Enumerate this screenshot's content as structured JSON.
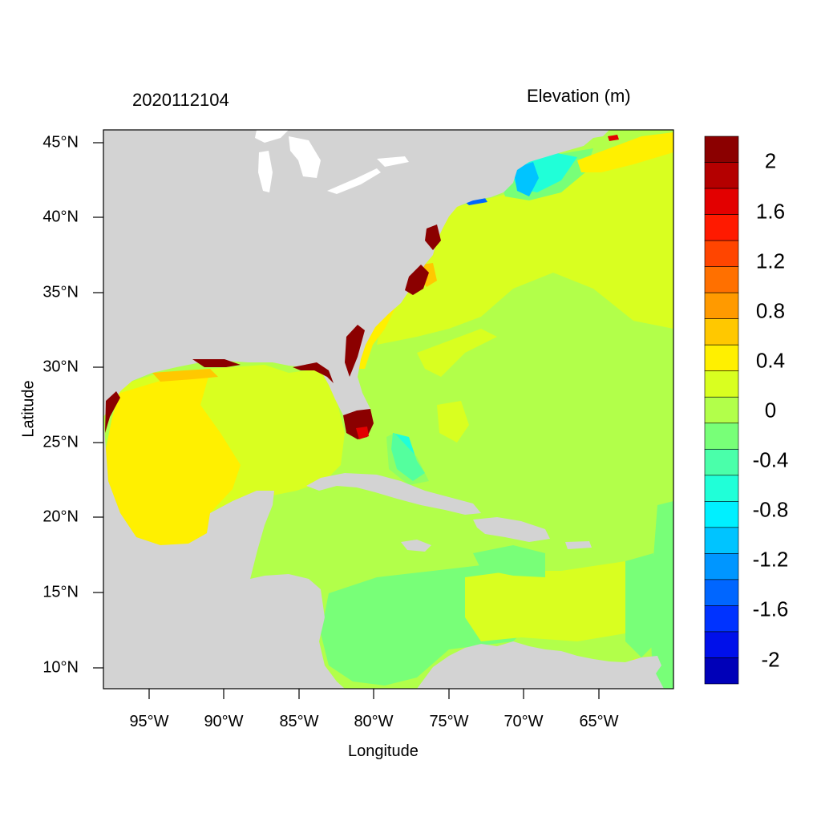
{
  "figure": {
    "title_left": "2020112104",
    "title_right": "Elevation (m)",
    "xlabel": "Longitude",
    "ylabel": "Latitude"
  },
  "axes": {
    "x_ticks": [
      "95°W",
      "90°W",
      "85°W",
      "80°W",
      "75°W",
      "70°W",
      "65°W"
    ],
    "y_ticks": [
      "45°N",
      "40°N",
      "35°N",
      "30°N",
      "25°N",
      "20°N",
      "15°N",
      "10°N"
    ],
    "lon_range": [
      -98,
      -60
    ],
    "lat_range": [
      8.5,
      46
    ]
  },
  "colorbar": {
    "tick_labels": [
      "2",
      "1.6",
      "1.2",
      "0.8",
      "0.4",
      "0",
      "-0.4",
      "-0.8",
      "-1.2",
      "-1.6",
      "-2"
    ],
    "colors_top_to_bottom": [
      "#8b0000",
      "#b40000",
      "#e30000",
      "#ff1a00",
      "#ff4500",
      "#ff7000",
      "#ff9a00",
      "#ffc800",
      "#fff000",
      "#d9ff20",
      "#b2ff4a",
      "#78ff78",
      "#4affaa",
      "#20ffd8",
      "#00f0ff",
      "#00c4ff",
      "#0096ff",
      "#0066ff",
      "#0033ff",
      "#0010ea",
      "#0000b8"
    ]
  },
  "colors": {
    "land": "#d3d3d3",
    "lake": "#ffffff",
    "ocean_base": "#b2ff4a",
    "surge_high": "#8b0000"
  }
}
